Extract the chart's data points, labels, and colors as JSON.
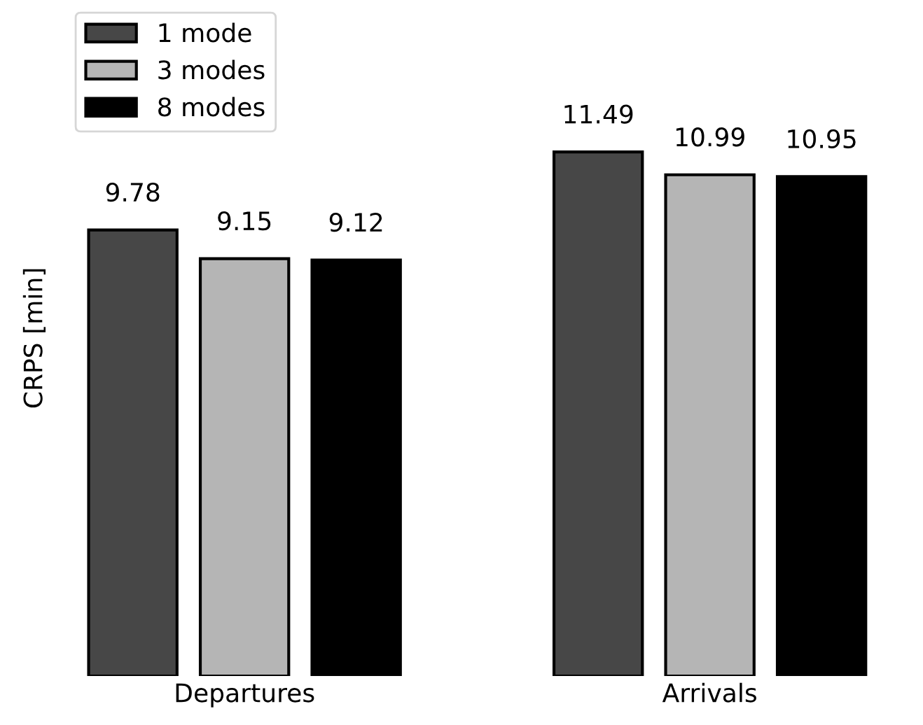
{
  "chart_data": {
    "type": "bar",
    "ylabel": "CRPS [min]",
    "categories": [
      "Departures",
      "Arrivals"
    ],
    "series": [
      {
        "name": "1 mode",
        "color": "#474747",
        "values": [
          9.78,
          11.49
        ]
      },
      {
        "name": "3 modes",
        "color": "#b5b5b5",
        "values": [
          9.15,
          10.99
        ]
      },
      {
        "name": "8 modes",
        "color": "#000000",
        "values": [
          9.12,
          10.95
        ]
      }
    ],
    "tick_labels": "x",
    "data_labels": true,
    "legend": "top left",
    "grid": false
  }
}
